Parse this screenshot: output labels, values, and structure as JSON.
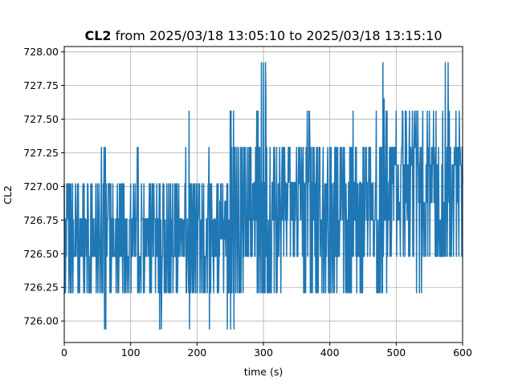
{
  "chart_data": {
    "type": "line",
    "title_bold": "CL2",
    "title_rest": " from 2025/03/18 13:05:10 to 2025/03/18 13:15:10",
    "xlabel": "time (s)",
    "ylabel": "CL2",
    "xlim": [
      0,
      600
    ],
    "ylim": [
      725.84,
      728.04
    ],
    "xticks": [
      0,
      100,
      200,
      300,
      400,
      500,
      600
    ],
    "yticks": [
      726.0,
      726.25,
      726.5,
      726.75,
      727.0,
      727.25,
      727.5,
      727.75,
      728.0
    ],
    "ytick_labels": [
      "726.00",
      "726.25",
      "726.50",
      "726.75",
      "727.00",
      "727.25",
      "727.50",
      "727.75",
      "728.00"
    ],
    "grid": true,
    "series": [
      {
        "color": "#1f77b4",
        "x": [
          0,
          10,
          20,
          30,
          40,
          50,
          56,
          60,
          62,
          70,
          80,
          90,
          100,
          110,
          120,
          130,
          143,
          150,
          160,
          170,
          183,
          188,
          190,
          200,
          210,
          218,
          220,
          230,
          245,
          250,
          255,
          260,
          270,
          280,
          290,
          297,
          300,
          305,
          310,
          320,
          330,
          340,
          350,
          360,
          366,
          370,
          380,
          390,
          400,
          410,
          420,
          430,
          435,
          440,
          450,
          460,
          470,
          480,
          485,
          490,
          500,
          510,
          520,
          530,
          540,
          550,
          560,
          570,
          574,
          580,
          590,
          600
        ],
        "y_high": [
          727.02,
          727.02,
          727.02,
          727.02,
          727.02,
          727.02,
          727.29,
          727.29,
          727.29,
          727.02,
          727.02,
          727.02,
          727.02,
          727.29,
          727.02,
          727.02,
          727.02,
          727.02,
          727.02,
          727.02,
          727.29,
          727.56,
          727.02,
          727.02,
          727.02,
          727.29,
          727.02,
          727.02,
          727.02,
          727.56,
          727.56,
          727.29,
          727.29,
          727.29,
          727.56,
          727.92,
          727.92,
          727.29,
          727.29,
          727.29,
          727.29,
          727.29,
          727.29,
          727.29,
          727.56,
          727.29,
          727.29,
          727.29,
          727.29,
          727.29,
          727.29,
          727.29,
          727.56,
          727.29,
          727.29,
          727.29,
          727.56,
          727.92,
          727.56,
          727.29,
          727.56,
          727.56,
          727.56,
          727.56,
          727.56,
          727.56,
          727.56,
          727.56,
          727.92,
          727.56,
          727.56,
          727.56
        ],
        "y_low": [
          726.21,
          726.21,
          726.21,
          726.21,
          726.21,
          726.21,
          726.21,
          725.94,
          725.94,
          726.21,
          726.21,
          726.21,
          726.21,
          726.21,
          726.21,
          726.21,
          725.94,
          726.21,
          726.21,
          726.21,
          726.21,
          725.94,
          726.21,
          726.21,
          726.21,
          725.94,
          726.21,
          726.21,
          725.94,
          725.94,
          725.94,
          726.21,
          726.48,
          726.48,
          726.21,
          726.21,
          726.21,
          726.21,
          726.21,
          726.21,
          726.48,
          726.48,
          726.48,
          726.21,
          726.48,
          726.21,
          726.21,
          726.21,
          726.21,
          726.21,
          726.21,
          726.21,
          726.48,
          726.21,
          726.48,
          726.48,
          726.21,
          726.48,
          726.21,
          726.48,
          726.48,
          726.48,
          726.48,
          726.21,
          726.48,
          726.48,
          726.48,
          726.48,
          726.48,
          726.48,
          726.48,
          726.48
        ],
        "y_typical": [
          726.62,
          726.62,
          726.62,
          726.62,
          726.62,
          726.62,
          726.62,
          726.62,
          726.62,
          726.62,
          726.62,
          726.62,
          726.62,
          726.62,
          726.62,
          726.62,
          726.62,
          726.62,
          726.62,
          726.62,
          726.62,
          726.62,
          726.62,
          726.62,
          726.62,
          726.62,
          726.62,
          726.75,
          726.75,
          726.75,
          726.75,
          726.75,
          726.89,
          726.89,
          726.89,
          726.89,
          726.89,
          726.89,
          726.89,
          726.89,
          726.89,
          726.89,
          726.89,
          726.89,
          726.89,
          726.89,
          726.89,
          726.89,
          726.89,
          726.89,
          726.89,
          726.89,
          726.89,
          726.89,
          726.89,
          726.89,
          726.89,
          726.89,
          726.89,
          727.02,
          727.02,
          727.02,
          727.02,
          727.02,
          727.02,
          727.02,
          727.02,
          727.02,
          727.02,
          727.02,
          727.02,
          727.02
        ]
      }
    ]
  }
}
